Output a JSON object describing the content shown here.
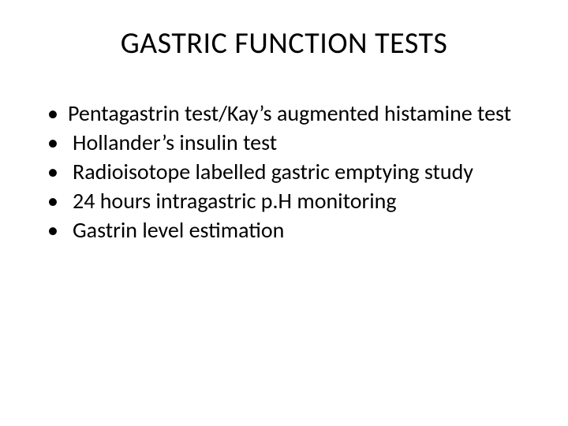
{
  "slide": {
    "title": "GASTRIC FUNCTION TESTS",
    "title_fontsize": 38,
    "title_color": "#000000",
    "bullets": [
      "Pentagastrin test/Kay’s augmented histamine test",
      "Hollander’s insulin test",
      "Radioisotope labelled gastric emptying study",
      "24 hours intragastric p.H monitoring",
      "Gastrin level estimation"
    ],
    "bullet_fontsize": 28,
    "bullet_line_height": 1.25,
    "bullet_color": "#000000",
    "background_color": "#ffffff"
  }
}
